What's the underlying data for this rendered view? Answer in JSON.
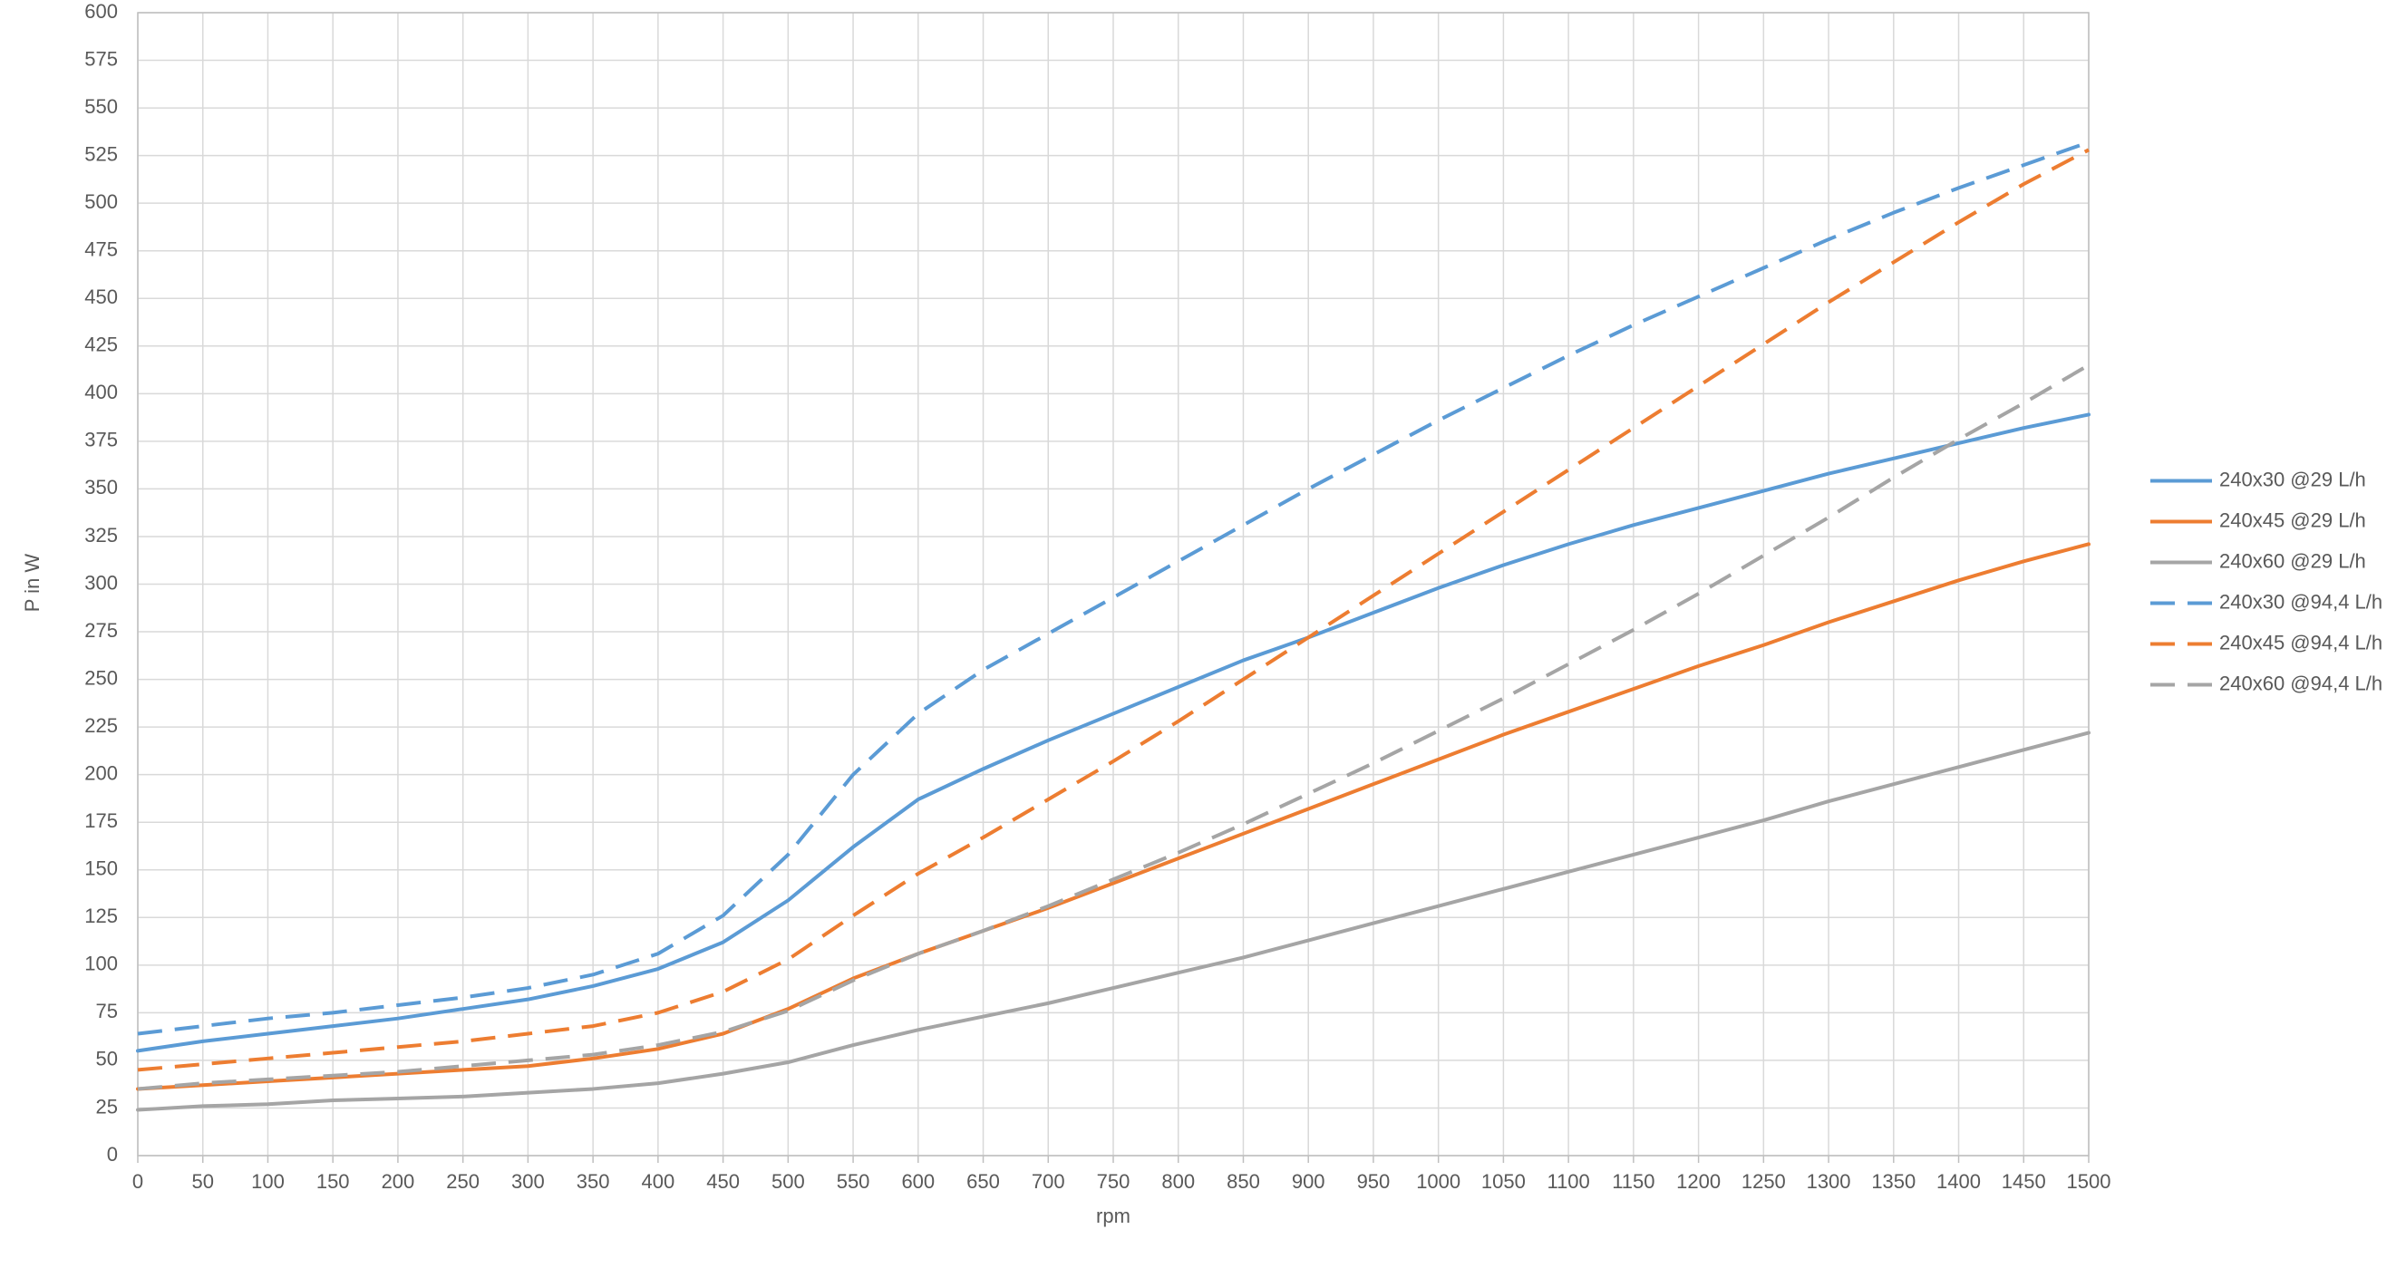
{
  "chart_data": {
    "type": "line",
    "xlabel": "rpm",
    "ylabel": "P in W",
    "x": [
      0,
      50,
      100,
      150,
      200,
      250,
      300,
      350,
      400,
      450,
      500,
      550,
      600,
      650,
      700,
      750,
      800,
      850,
      900,
      950,
      1000,
      1050,
      1100,
      1150,
      1200,
      1250,
      1300,
      1350,
      1400,
      1450,
      1500
    ],
    "xlim": [
      0,
      1500
    ],
    "xticks": [
      0,
      50,
      100,
      150,
      200,
      250,
      300,
      350,
      400,
      450,
      500,
      550,
      600,
      650,
      700,
      750,
      800,
      850,
      900,
      950,
      1000,
      1050,
      1100,
      1150,
      1200,
      1250,
      1300,
      1350,
      1400,
      1450,
      1500
    ],
    "ylim": [
      0,
      600
    ],
    "yticks": [
      0,
      25,
      50,
      75,
      100,
      125,
      150,
      175,
      200,
      225,
      250,
      275,
      300,
      325,
      350,
      375,
      400,
      425,
      450,
      475,
      500,
      525,
      550,
      575,
      600
    ],
    "grid": true,
    "legend": "right",
    "series": [
      {
        "name": "240x30 @29 L/h",
        "color": "#5b9bd5",
        "dashed": false,
        "values": [
          55,
          60,
          64,
          68,
          72,
          77,
          82,
          89,
          98,
          112,
          134,
          162,
          187,
          203,
          218,
          232,
          246,
          260,
          272,
          285,
          298,
          310,
          321,
          331,
          340,
          349,
          358,
          366,
          374,
          382,
          389
        ]
      },
      {
        "name": "240x45 @29 L/h",
        "color": "#ed7d31",
        "dashed": false,
        "values": [
          35,
          37,
          39,
          41,
          43,
          45,
          47,
          51,
          56,
          64,
          77,
          93,
          106,
          118,
          130,
          143,
          156,
          169,
          182,
          195,
          208,
          221,
          233,
          245,
          257,
          268,
          280,
          291,
          302,
          312,
          321
        ]
      },
      {
        "name": "240x60 @29 L/h",
        "color": "#a5a5a5",
        "dashed": false,
        "values": [
          24,
          26,
          27,
          29,
          30,
          31,
          33,
          35,
          38,
          43,
          49,
          58,
          66,
          73,
          80,
          88,
          96,
          104,
          113,
          122,
          131,
          140,
          149,
          158,
          167,
          176,
          186,
          195,
          204,
          213,
          222
        ]
      },
      {
        "name": "240x30 @94,4 L/h",
        "color": "#5b9bd5",
        "dashed": true,
        "values": [
          64,
          68,
          72,
          75,
          79,
          83,
          88,
          95,
          106,
          126,
          158,
          200,
          232,
          255,
          274,
          293,
          312,
          331,
          350,
          368,
          386,
          403,
          420,
          436,
          451,
          466,
          481,
          495,
          508,
          520,
          532
        ]
      },
      {
        "name": "240x45 @94,4 L/h",
        "color": "#ed7d31",
        "dashed": true,
        "values": [
          45,
          48,
          51,
          54,
          57,
          60,
          64,
          68,
          75,
          86,
          103,
          126,
          148,
          167,
          187,
          207,
          228,
          250,
          272,
          294,
          316,
          338,
          360,
          382,
          404,
          426,
          448,
          469,
          490,
          510,
          528
        ]
      },
      {
        "name": "240x60 @94,4 L/h",
        "color": "#a5a5a5",
        "dashed": true,
        "values": [
          35,
          38,
          40,
          42,
          44,
          47,
          50,
          53,
          58,
          65,
          76,
          92,
          106,
          118,
          131,
          145,
          159,
          174,
          190,
          206,
          223,
          240,
          258,
          276,
          295,
          315,
          335,
          356,
          376,
          395,
          415
        ]
      }
    ]
  }
}
